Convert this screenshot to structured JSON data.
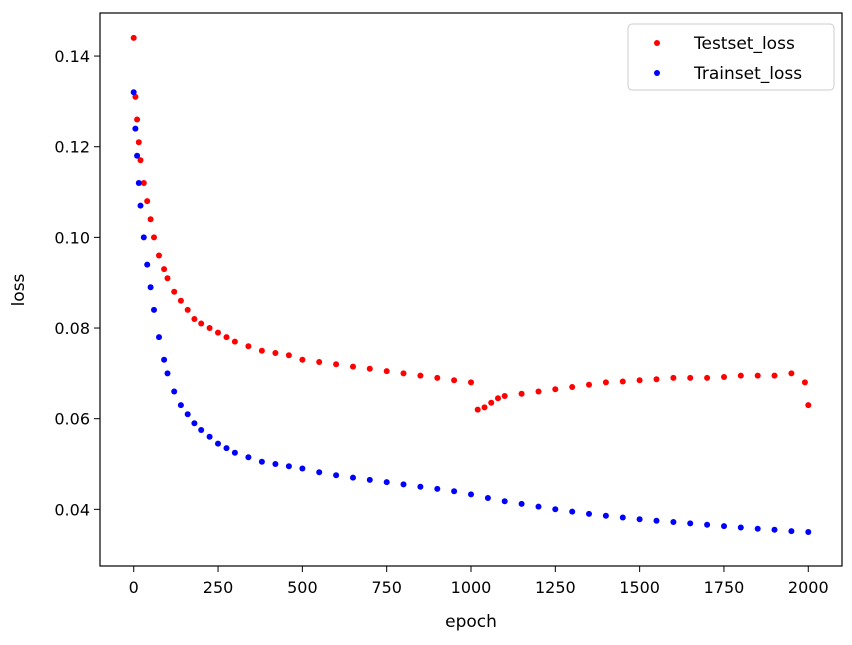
{
  "chart_data": {
    "type": "scatter",
    "title": "",
    "xlabel": "epoch",
    "ylabel": "loss",
    "xlim": [
      -100,
      2100
    ],
    "ylim": [
      0.0275,
      0.1495
    ],
    "xticks": [
      0,
      250,
      500,
      750,
      1000,
      1250,
      1500,
      1750,
      2000
    ],
    "xtick_labels": [
      "0",
      "250",
      "500",
      "750",
      "1000",
      "1250",
      "1500",
      "1750",
      "2000"
    ],
    "yticks": [
      0.04,
      0.06,
      0.08,
      0.1,
      0.12,
      0.14
    ],
    "ytick_labels": [
      "0.04",
      "0.06",
      "0.08",
      "0.10",
      "0.12",
      "0.14"
    ],
    "grid": false,
    "legend_position": "top-right",
    "series": [
      {
        "name": "Testset_loss",
        "color": "#ff0000",
        "x": [
          0,
          5,
          10,
          15,
          20,
          30,
          40,
          50,
          60,
          75,
          90,
          100,
          120,
          140,
          160,
          180,
          200,
          225,
          250,
          275,
          300,
          340,
          380,
          420,
          460,
          500,
          550,
          600,
          650,
          700,
          750,
          800,
          850,
          900,
          950,
          1000,
          1020,
          1040,
          1060,
          1080,
          1100,
          1150,
          1200,
          1250,
          1300,
          1350,
          1400,
          1450,
          1500,
          1550,
          1600,
          1650,
          1700,
          1750,
          1800,
          1850,
          1900,
          1950,
          1990,
          2000
        ],
        "y": [
          0.144,
          0.131,
          0.126,
          0.121,
          0.117,
          0.112,
          0.108,
          0.104,
          0.1,
          0.096,
          0.093,
          0.091,
          0.088,
          0.086,
          0.084,
          0.082,
          0.081,
          0.08,
          0.079,
          0.078,
          0.077,
          0.076,
          0.075,
          0.0745,
          0.074,
          0.073,
          0.0725,
          0.072,
          0.0715,
          0.071,
          0.0705,
          0.07,
          0.0695,
          0.069,
          0.0685,
          0.068,
          0.062,
          0.0625,
          0.0635,
          0.0645,
          0.065,
          0.0655,
          0.066,
          0.0665,
          0.067,
          0.0675,
          0.068,
          0.0682,
          0.0685,
          0.0687,
          0.069,
          0.069,
          0.069,
          0.0692,
          0.0695,
          0.0695,
          0.0695,
          0.07,
          0.068,
          0.063
        ]
      },
      {
        "name": "Trainset_loss",
        "color": "#0000ff",
        "x": [
          0,
          5,
          10,
          15,
          20,
          30,
          40,
          50,
          60,
          75,
          90,
          100,
          120,
          140,
          160,
          180,
          200,
          225,
          250,
          275,
          300,
          340,
          380,
          420,
          460,
          500,
          550,
          600,
          650,
          700,
          750,
          800,
          850,
          900,
          950,
          1000,
          1050,
          1100,
          1150,
          1200,
          1250,
          1300,
          1350,
          1400,
          1450,
          1500,
          1550,
          1600,
          1650,
          1700,
          1750,
          1800,
          1850,
          1900,
          1950,
          2000
        ],
        "y": [
          0.132,
          0.124,
          0.118,
          0.112,
          0.107,
          0.1,
          0.094,
          0.089,
          0.084,
          0.078,
          0.073,
          0.07,
          0.066,
          0.063,
          0.061,
          0.059,
          0.0575,
          0.056,
          0.0545,
          0.0535,
          0.0525,
          0.0515,
          0.0505,
          0.05,
          0.0495,
          0.049,
          0.0482,
          0.0475,
          0.047,
          0.0465,
          0.046,
          0.0455,
          0.045,
          0.0445,
          0.044,
          0.0433,
          0.0425,
          0.0418,
          0.0412,
          0.0406,
          0.04,
          0.0395,
          0.039,
          0.0386,
          0.0382,
          0.0378,
          0.0375,
          0.0372,
          0.0369,
          0.0366,
          0.0363,
          0.036,
          0.0357,
          0.0355,
          0.0352,
          0.035
        ]
      }
    ]
  }
}
